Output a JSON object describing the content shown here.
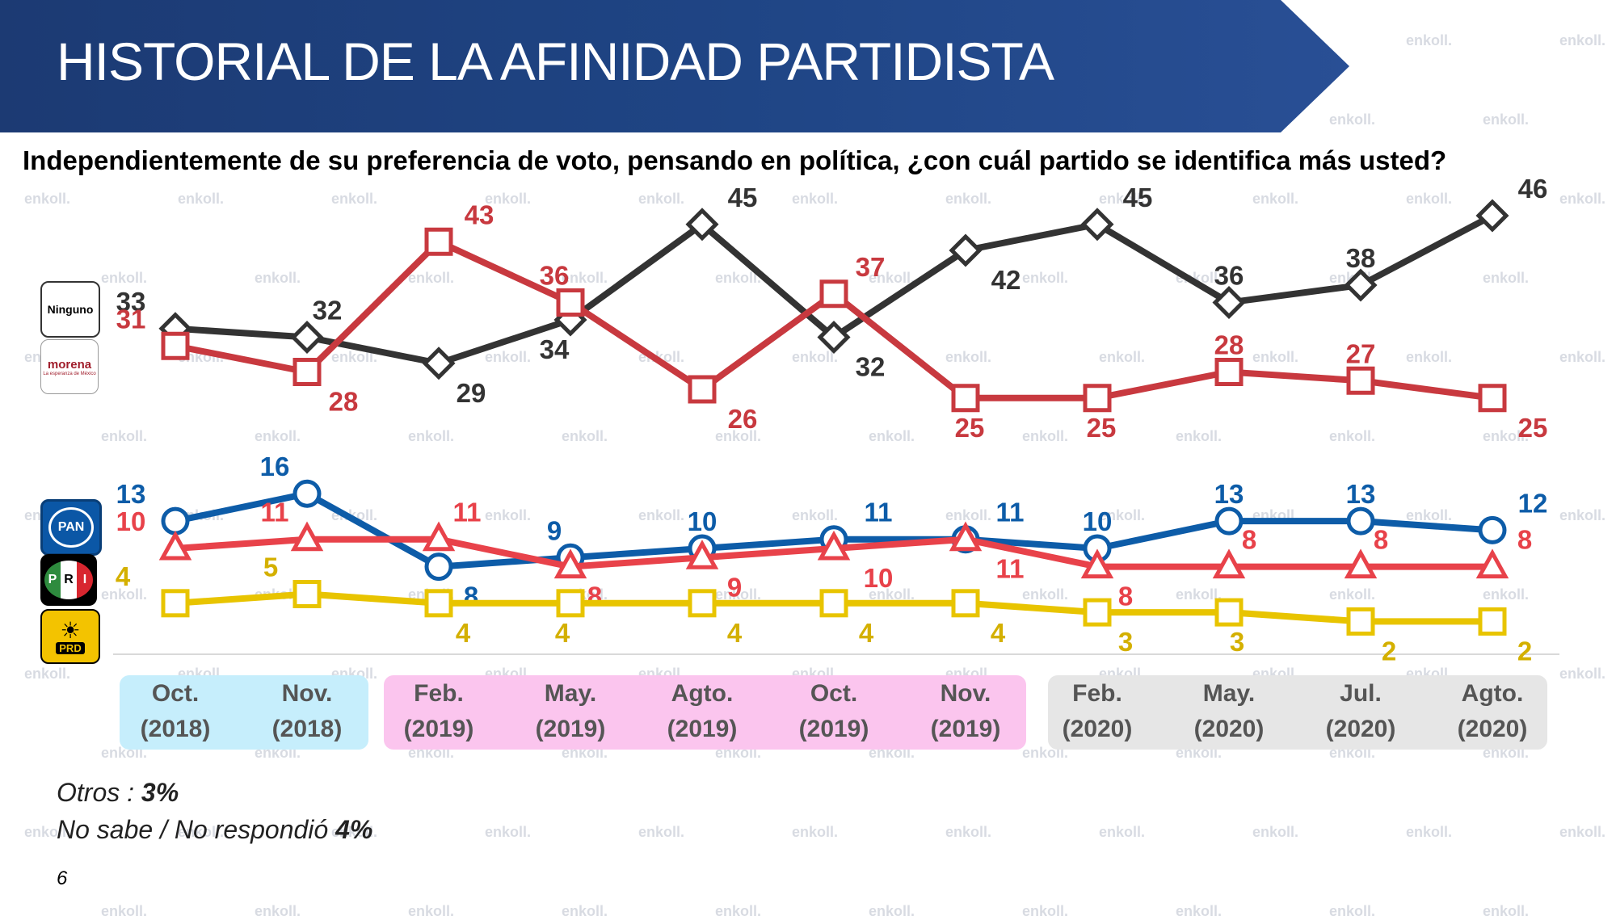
{
  "title": "HISTORIAL DE LA AFINIDAD PARTIDISTA",
  "question": "Independientemente de su preferencia de voto, pensando en política, ¿con cuál partido se identifica más usted?",
  "legend": {
    "ninguno": "Ninguno",
    "morena": "morena",
    "morena_sub": "La esperanza de México",
    "pan": "PAN",
    "pri_letters": [
      "P",
      "R",
      "I"
    ],
    "prd": "PRD"
  },
  "notes": {
    "otros_label": "Otros : ",
    "otros_value": "3%",
    "nosabe_label": "No sabe / No respondió ",
    "nosabe_value": "4%"
  },
  "page_number": "6",
  "watermark": "enkoll.",
  "colors": {
    "ninguno": "#333333",
    "morena": "#c8393f",
    "pan": "#0d5ca8",
    "pri": "#e8424a",
    "prd": "#e8c400",
    "banner": "#1f4585"
  },
  "chart_data": {
    "type": "line",
    "categories": [
      [
        "Oct.",
        "(2018)"
      ],
      [
        "Nov.",
        "(2018)"
      ],
      [
        "Feb.",
        "(2019)"
      ],
      [
        "May.",
        "(2019)"
      ],
      [
        "Agto.",
        "(2019)"
      ],
      [
        "Oct.",
        "(2019)"
      ],
      [
        "Nov.",
        "(2019)"
      ],
      [
        "Feb.",
        "(2020)"
      ],
      [
        "May.",
        "(2020)"
      ],
      [
        "Jul.",
        "(2020)"
      ],
      [
        "Agto.",
        "(2020)"
      ]
    ],
    "series": [
      {
        "name": "Ninguno",
        "color": "#333333",
        "marker": "diamond",
        "values": [
          33,
          32,
          29,
          34,
          45,
          32,
          42,
          45,
          36,
          38,
          46
        ]
      },
      {
        "name": "morena",
        "color": "#c8393f",
        "marker": "square",
        "values": [
          31,
          28,
          43,
          36,
          26,
          37,
          25,
          25,
          28,
          27,
          25
        ]
      },
      {
        "name": "PAN",
        "color": "#0d5ca8",
        "marker": "circle",
        "values": [
          13,
          16,
          8,
          9,
          10,
          11,
          11,
          10,
          13,
          13,
          12
        ]
      },
      {
        "name": "PRI",
        "color": "#e8424a",
        "marker": "triangle",
        "values": [
          10,
          11,
          11,
          8,
          9,
          10,
          11,
          8,
          8,
          8,
          8
        ]
      },
      {
        "name": "PRD",
        "color": "#e8c400",
        "marker": "square",
        "values": [
          4,
          5,
          4,
          4,
          4,
          4,
          4,
          3,
          3,
          2,
          2
        ]
      }
    ]
  }
}
